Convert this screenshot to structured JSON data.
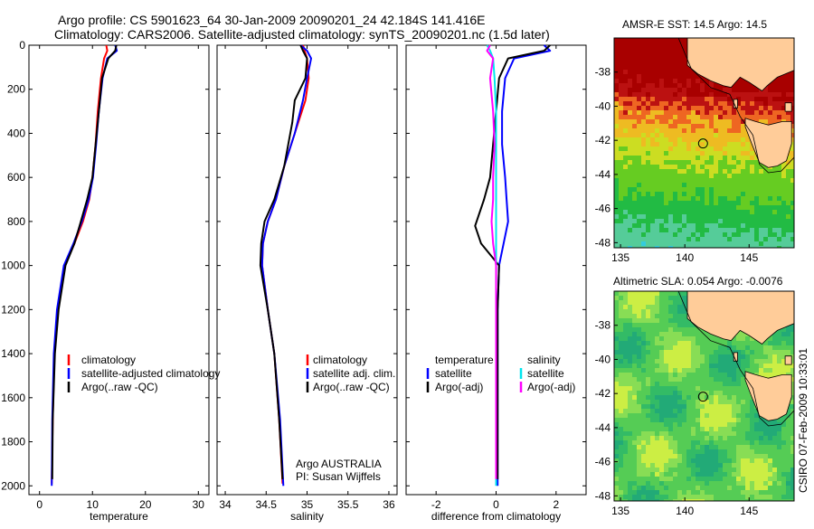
{
  "header": {
    "title_line1": "Argo profile: CS 5901623_64 30-Jan-2009 20090201_24 42.184S 141.416E",
    "title_line2": "Climatology: CARS2006. Satellite-adjusted climatology: synTS_20090201.nc (1.5d later)"
  },
  "footer_vertical": "CSIRO 07-Feb-2009 10:33:01",
  "colors": {
    "climatology": "#ff0000",
    "satellite": "#0000ff",
    "argo": "#000000",
    "salinity_satellite": "#00e5ee",
    "salinity_argo": "#ff00ff",
    "land": "#ffcc99"
  },
  "chart_data": [
    {
      "id": "temperature",
      "type": "line",
      "xlabel": "temperature",
      "xticks": [
        "0",
        "10",
        "20",
        "30"
      ],
      "xlim": [
        -2,
        32
      ],
      "ylim": [
        0,
        2040
      ],
      "yticks": [
        "0",
        "200",
        "400",
        "600",
        "800",
        "1000",
        "1200",
        "1400",
        "1600",
        "1800",
        "2000"
      ],
      "legend": [
        "climatology",
        "satellite-adjusted climatology",
        "Argo(..raw -QC)"
      ],
      "series": [
        {
          "name": "climatology",
          "color": "#ff0000",
          "x": [
            12.6,
            12.8,
            12.2,
            11.6,
            11.0,
            10.6,
            10.0,
            9.4,
            8.2,
            6.6,
            4.8,
            3.4,
            2.8,
            2.5,
            2.3
          ],
          "y": [
            0,
            25,
            60,
            150,
            300,
            450,
            600,
            700,
            800,
            900,
            1000,
            1200,
            1400,
            1700,
            1990
          ]
        },
        {
          "name": "satellite-adjusted climatology",
          "color": "#0000ff",
          "x": [
            14.3,
            14.6,
            12.8,
            11.9,
            11.2,
            10.7,
            10.1,
            9.3,
            8.0,
            6.4,
            4.6,
            3.3,
            2.7,
            2.4,
            2.3
          ],
          "y": [
            0,
            25,
            60,
            150,
            300,
            450,
            600,
            700,
            800,
            900,
            1000,
            1200,
            1400,
            1700,
            2000
          ]
        },
        {
          "name": "Argo(..raw -QC)",
          "color": "#000000",
          "x": [
            14.5,
            14.3,
            13.0,
            11.8,
            11.2,
            10.6,
            10.0,
            9.0,
            7.8,
            6.6,
            4.9,
            3.6,
            2.9,
            2.5,
            2.4
          ],
          "y": [
            0,
            25,
            60,
            150,
            300,
            450,
            600,
            700,
            800,
            900,
            1000,
            1200,
            1400,
            1700,
            1970
          ]
        }
      ]
    },
    {
      "id": "salinity",
      "type": "line",
      "xlabel": "salinity",
      "xticks": [
        "34",
        "34.5",
        "35",
        "35.5",
        "36"
      ],
      "xlim": [
        33.9,
        36.1
      ],
      "ylim": [
        0,
        2040
      ],
      "legend": [
        "climatology",
        "satellite adj. clim.",
        "Argo(..raw -QC)"
      ],
      "annotation_line1": "Argo AUSTRALIA",
      "annotation_line2": "PI: Susan Wijffels",
      "series": [
        {
          "name": "climatology",
          "color": "#ff0000",
          "x": [
            34.95,
            34.97,
            35.0,
            35.02,
            34.98,
            34.85,
            34.72,
            34.62,
            34.52,
            34.46,
            34.45,
            34.52,
            34.6,
            34.66,
            34.7
          ],
          "y": [
            0,
            25,
            60,
            150,
            250,
            400,
            550,
            700,
            800,
            900,
            1000,
            1200,
            1400,
            1700,
            1990
          ]
        },
        {
          "name": "satellite adj. clim.",
          "color": "#0000ff",
          "x": [
            34.92,
            35.0,
            35.05,
            35.0,
            34.95,
            34.85,
            34.72,
            34.62,
            34.52,
            34.46,
            34.45,
            34.52,
            34.6,
            34.67,
            34.71
          ],
          "y": [
            0,
            25,
            60,
            150,
            250,
            400,
            550,
            700,
            800,
            900,
            1000,
            1200,
            1400,
            1700,
            2000
          ]
        },
        {
          "name": "Argo(..raw -QC)",
          "color": "#000000",
          "x": [
            34.92,
            34.95,
            35.0,
            34.98,
            34.85,
            34.82,
            34.72,
            34.6,
            34.48,
            34.44,
            34.43,
            34.52,
            34.6,
            34.66,
            34.7
          ],
          "y": [
            0,
            25,
            60,
            150,
            250,
            350,
            550,
            700,
            800,
            900,
            1000,
            1200,
            1400,
            1700,
            1970
          ]
        }
      ]
    },
    {
      "id": "difference",
      "type": "line",
      "xlabel": "difference from climatology",
      "xticks": [
        "-2",
        "0",
        "2"
      ],
      "xlim": [
        -3,
        3
      ],
      "ylim": [
        0,
        2040
      ],
      "legend_headers": [
        "temperature",
        "salinity"
      ],
      "legend": [
        "satellite",
        "Argo(-adj)",
        "satellite",
        "Argo(-adj)"
      ],
      "series": [
        {
          "name": "temperature satellite",
          "color": "#0000ff",
          "x": [
            1.6,
            1.8,
            0.6,
            0.3,
            0.2,
            0.2,
            0.3,
            0.35,
            0.4,
            0.25,
            0.1,
            0.05,
            0.05,
            0.05,
            0.05
          ],
          "y": [
            0,
            25,
            60,
            150,
            300,
            450,
            600,
            700,
            800,
            900,
            1000,
            1200,
            1400,
            1700,
            2000
          ]
        },
        {
          "name": "temperature Argo(-adj)",
          "color": "#000000",
          "x": [
            1.8,
            1.6,
            0.4,
            0.1,
            0.0,
            -0.1,
            -0.2,
            -0.4,
            -0.7,
            -0.5,
            0.1,
            0.05,
            0.05,
            0.05,
            0.05
          ],
          "y": [
            0,
            25,
            60,
            150,
            300,
            450,
            600,
            700,
            820,
            900,
            1000,
            1200,
            1400,
            1700,
            1970
          ]
        },
        {
          "name": "salinity satellite",
          "color": "#00e5ee",
          "x": [
            -0.3,
            -0.2,
            -0.1,
            -0.05,
            0.0,
            0.0,
            0.0,
            0.0,
            0.0,
            0.0,
            0.0,
            0.0,
            0.0,
            0.0,
            0.0
          ],
          "y": [
            0,
            25,
            60,
            150,
            300,
            450,
            600,
            700,
            800,
            900,
            1000,
            1200,
            1400,
            1700,
            2000
          ]
        },
        {
          "name": "salinity Argo(-adj)",
          "color": "#ff00ff",
          "x": [
            -0.2,
            -0.3,
            -0.1,
            -0.2,
            -0.1,
            -0.05,
            -0.1,
            -0.1,
            -0.15,
            -0.1,
            0.0,
            0.0,
            0.0,
            0.0,
            0.0
          ],
          "y": [
            0,
            25,
            60,
            150,
            300,
            450,
            600,
            700,
            800,
            900,
            1000,
            1200,
            1400,
            1700,
            1970
          ]
        }
      ]
    },
    {
      "id": "sst-map",
      "type": "heatmap",
      "title": "AMSR-E SST: 14.5 Argo: 14.5",
      "xticks": [
        "135",
        "140",
        "145"
      ],
      "yticks": [
        "-38",
        "-40",
        "-42",
        "-44",
        "-46",
        "-48"
      ],
      "xlim": [
        134.5,
        148.5
      ],
      "ylim": [
        -48.3,
        -36
      ],
      "marker": {
        "lon": 141.416,
        "lat": -42.184
      }
    },
    {
      "id": "sla-map",
      "type": "heatmap",
      "title": "Altimetric SLA: 0.054 Argo: -0.0076",
      "xticks": [
        "135",
        "140",
        "145"
      ],
      "yticks": [
        "-38",
        "-40",
        "-42",
        "-44",
        "-46",
        "-48"
      ],
      "xlim": [
        134.5,
        148.5
      ],
      "ylim": [
        -48.3,
        -36
      ],
      "marker": {
        "lon": 141.416,
        "lat": -42.184
      }
    }
  ]
}
